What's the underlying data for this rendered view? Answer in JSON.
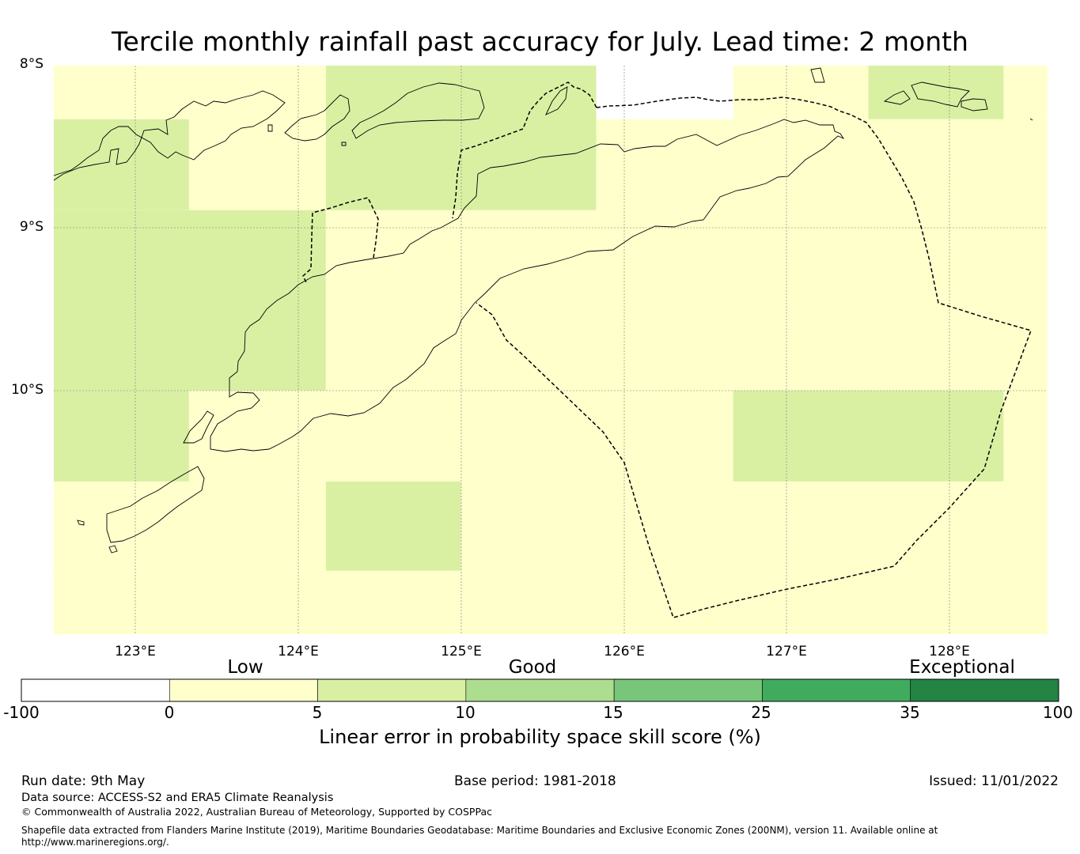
{
  "title": "Tercile monthly rainfall past accuracy for July. Lead time: 2 month",
  "map": {
    "lat_labels": [
      "8°S",
      "9°S",
      "10°S"
    ],
    "lon_labels": [
      "123°E",
      "124°E",
      "125°E",
      "126°E",
      "127°E",
      "128°E"
    ],
    "extent": {
      "lon_min": 122.5,
      "lon_max": 128.6,
      "lat_min": -11.5,
      "lat_max": -8.0
    },
    "cells": [
      {
        "lon": [
          122.5,
          123.33
        ],
        "lat": [
          -8.0,
          -8.33
        ],
        "category": "0-5"
      },
      {
        "lon": [
          122.5,
          123.33
        ],
        "lat": [
          -8.33,
          -8.89
        ],
        "category": "5-10"
      },
      {
        "lon": [
          123.33,
          124.17
        ],
        "lat": [
          -8.0,
          -8.89
        ],
        "category": "0-5"
      },
      {
        "lon": [
          124.17,
          125.83
        ],
        "lat": [
          -8.0,
          -8.89
        ],
        "category": "5-10"
      },
      {
        "lon": [
          125.83,
          126.67
        ],
        "lat": [
          -8.0,
          -8.33
        ],
        "category": "<0"
      },
      {
        "lon": [
          125.83,
          126.67
        ],
        "lat": [
          -8.33,
          -8.89
        ],
        "category": "0-5"
      },
      {
        "lon": [
          126.67,
          127.5
        ],
        "lat": [
          -8.0,
          -8.33
        ],
        "category": "0-5"
      },
      {
        "lon": [
          127.5,
          128.33
        ],
        "lat": [
          -8.0,
          -8.33
        ],
        "category": "5-10"
      },
      {
        "lon": [
          128.33,
          128.6
        ],
        "lat": [
          -8.0,
          -8.33
        ],
        "category": "0-5"
      },
      {
        "lon": [
          126.67,
          128.6
        ],
        "lat": [
          -8.33,
          -8.89
        ],
        "category": "0-5"
      },
      {
        "lon": [
          122.5,
          124.17
        ],
        "lat": [
          -8.89,
          -10.0
        ],
        "category": "5-10"
      },
      {
        "lon": [
          124.17,
          128.6
        ],
        "lat": [
          -8.89,
          -10.0
        ],
        "category": "0-5"
      },
      {
        "lon": [
          122.5,
          123.33
        ],
        "lat": [
          -10.0,
          -10.56
        ],
        "category": "5-10"
      },
      {
        "lon": [
          123.33,
          126.67
        ],
        "lat": [
          -10.0,
          -10.56
        ],
        "category": "0-5"
      },
      {
        "lon": [
          126.67,
          128.33
        ],
        "lat": [
          -10.0,
          -10.56
        ],
        "category": "5-10"
      },
      {
        "lon": [
          128.33,
          128.6
        ],
        "lat": [
          -10.0,
          -10.56
        ],
        "category": "0-5"
      },
      {
        "lon": [
          122.5,
          124.17
        ],
        "lat": [
          -10.56,
          -11.11
        ],
        "category": "0-5"
      },
      {
        "lon": [
          124.17,
          125.0
        ],
        "lat": [
          -10.56,
          -11.11
        ],
        "category": "5-10"
      },
      {
        "lon": [
          125.0,
          128.6
        ],
        "lat": [
          -10.56,
          -11.11
        ],
        "category": "0-5"
      },
      {
        "lon": [
          122.5,
          124.17
        ],
        "lat": [
          -11.11,
          -11.5
        ],
        "category": "0-5"
      },
      {
        "lon": [
          124.17,
          125.0
        ],
        "lat": [
          -11.11,
          -11.5
        ],
        "category": "0-5"
      },
      {
        "lon": [
          125.0,
          128.6
        ],
        "lat": [
          -11.11,
          -11.5
        ],
        "category": "0-5"
      }
    ]
  },
  "colorbar": {
    "categories": [
      "Low",
      "Good",
      "Exceptional"
    ],
    "ticks": [
      "-100",
      "0",
      "5",
      "10",
      "15",
      "25",
      "35",
      "100"
    ],
    "colors": [
      "#ffffff",
      "#ffffcc",
      "#d9f0a3",
      "#addd8e",
      "#78c679",
      "#41ab5d",
      "#238443"
    ],
    "label": "Linear error in probability space skill score (%)"
  },
  "category_colors": {
    "<0": "#ffffff",
    "0-5": "#ffffcc",
    "5-10": "#d9f0a3"
  },
  "footer": {
    "run_date": "Run date: 9th May",
    "base_period": "Base period: 1981-2018",
    "issued": "Issued: 11/01/2022",
    "data_source": "Data source: ACCESS-S2 and ERA5 Climate Reanalysis",
    "copyright": "© Commonwealth of Australia 2022, Australian Bureau of Meteorology, Supported by COSPPac",
    "shapefile": "Shapefile data extracted from Flanders Marine Institute (2019), Maritime Boundaries Geodatabase: Maritime Boundaries and Exclusive Economic Zones (200NM), version 11. Available online at",
    "shapefile_url": "http://www.marineregions.org/."
  }
}
